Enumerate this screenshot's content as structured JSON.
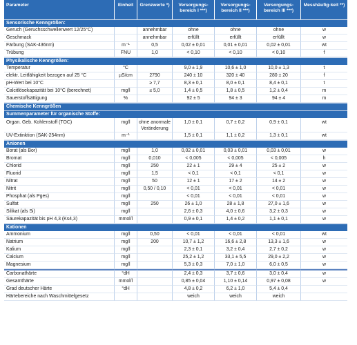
{
  "header": [
    "Parameter",
    "Einheit",
    "Grenzwerte *)",
    "Versorgungs-bereich I ***)",
    "Versorgungs-bereich II ***)",
    "Versorgungs-bereich III ***)",
    "Messhäufig-keit **)"
  ],
  "sections": [
    {
      "title": "Sensorische Kenngrößen:",
      "rows": [
        [
          "Geruch (Geruchsschwellenwert 12/25°C)",
          "",
          "annehmbar",
          "ohne",
          "ohne",
          "ohne",
          "w"
        ],
        [
          "Geschmack",
          "",
          "annehmbar",
          "erfüllt",
          "erfüllt",
          "erfüllt",
          "w"
        ],
        [
          "Färbung  (SAK-436nm)",
          "m⁻¹",
          "0,5",
          "0,02 ± 0,01",
          "0,01 ± 0,01",
          "0,02 ± 0,01",
          "wt"
        ],
        [
          "Trübung",
          "FNU",
          "1,0",
          "< 0,10",
          "< 0,10",
          "< 0,10",
          "f"
        ]
      ]
    },
    {
      "title": "Physikalische Kenngrößen:",
      "rows": [
        [
          "Temperatur",
          "°C",
          "",
          "9,0 ± 1,9",
          "10,6 ± 1,0",
          "10,0 ± 1,3",
          "t"
        ],
        [
          "elektr. Leitfähigkeit bezogen auf 25 °C",
          "µS/cm",
          "2790",
          "240 ± 10",
          "320 ± 40",
          "280 ± 20",
          "f"
        ],
        [
          "pH-Wert bei 10°C",
          "",
          "≥ 7,7",
          "8,3 ± 0,1",
          "8,0 ± 0,1",
          "8,4 ± 0,1",
          "t"
        ],
        [
          "Calcitlösekapazität bei 10°C (berechnet)",
          "mg/l",
          "≤ 5,0",
          "1,4 ± 0,5",
          "1,8 ± 0,5",
          "1,2 ± 0,4",
          "m"
        ],
        [
          "Sauerstoffsättigung",
          "%",
          "",
          "92 ± 5",
          "94 ± 3",
          "94 ± 4",
          "m"
        ]
      ]
    },
    {
      "title": "Chemische Kenngrößen",
      "rows": []
    },
    {
      "title": "Summenparameter für organische Stoffe:",
      "rows": [
        [
          "Organ. Geb. Kohlenstoff (TOC)",
          "mg/l",
          "ohne anormale Veränderung",
          "1,0 ± 0,1",
          "0,7 ± 0,2",
          "0,9 ± 0,1",
          "wt"
        ],
        [
          "UV-Extinktion (SAK-254nm)",
          "m⁻¹",
          "",
          "1,5 ± 0,1",
          "1,1 ± 0,2",
          "1,3 ± 0,1",
          "wt"
        ]
      ]
    },
    {
      "title": "Anionen",
      "rows": [
        [
          "Borat (als Bor)",
          "mg/l",
          "1,0",
          "0,02 ± 0,01",
          "0,03 ± 0,01",
          "0,03 ± 0,01",
          "w"
        ],
        [
          "Bromat",
          "mg/l",
          "0,010",
          "< 0,005",
          "< 0,005",
          "< 0,005",
          "h"
        ],
        [
          "Chlorid",
          "mg/l",
          "250",
          "22 ± 1",
          "29 ± 4",
          "25 ± 2",
          "w"
        ],
        [
          "Fluorid",
          "mg/l",
          "1,5",
          "< 0,1",
          "< 0,1",
          "< 0,1",
          "w"
        ],
        [
          "Nitrat",
          "mg/l",
          "50",
          "12 ± 1",
          "17 ± 2",
          "14 ± 2",
          "w"
        ],
        [
          "Nitrit",
          "mg/l",
          "0,50 / 0,10",
          "< 0,01",
          "< 0,01",
          "< 0,01",
          "w"
        ],
        [
          "Phosphat (als Pges)",
          "mg/l",
          "",
          "< 0,01",
          "< 0,01",
          "< 0,01",
          "w"
        ],
        [
          "Sulfat",
          "mg/l",
          "250",
          "26 ± 1,0",
          "28 ± 1,8",
          "27,0 ± 1,6",
          "w"
        ],
        [
          "Silikat (als Si)",
          "mg/l",
          "",
          "2,6 ± 0,3",
          "4,0 ± 0,6",
          "3,2 ± 0,3",
          "w"
        ],
        [
          "Säurekapazität bis pH 4,3 (Ks4,3)",
          "mmol/l",
          "",
          "0,9 ± 0,1",
          "1,4 ± 0,2",
          "1,1 ± 0,1",
          "w"
        ]
      ]
    },
    {
      "title": "Kationen",
      "rows": [
        [
          "Ammonium",
          "mg/l",
          "0,50",
          "< 0,01",
          "< 0,01",
          "< 0,01",
          "wt"
        ],
        [
          "Natrium",
          "mg/l",
          "200",
          "10,7 ± 1,2",
          "16,6 ± 2,8",
          "13,3 ± 1,6",
          "w"
        ],
        [
          "Kalium",
          "mg/l",
          "",
          "2,3 ± 0,1",
          "3,2 ± 0,4",
          "2,7 ± 0,2",
          "w"
        ],
        [
          "Calcium",
          "mg/l",
          "",
          "25,2 ± 1,2",
          "33,1 ± 5,5",
          "29,0 ± 2,2",
          "w"
        ],
        [
          "Magnesium",
          "mg/l",
          "",
          "5,3 ± 0,3",
          "7,0 ± 1,0",
          "6,0 ± 0,5",
          "w"
        ]
      ]
    }
  ],
  "hardness_rows": [
    [
      "Carbonathärte",
      "°dH",
      "",
      "2,4 ± 0,3",
      "3,7 ± 0,6",
      "3,0 ± 0,4",
      "w"
    ],
    [
      "Gesamthärte",
      "mmol/l",
      "",
      "0,85 ± 0,04",
      "1,10 ± 0,14",
      "0,97 ± 0,08",
      "w"
    ],
    [
      "Grad deutscher Härte",
      "°dH",
      "",
      "4,8 ± 0,2",
      "6,2 ± 1,0",
      "5,4 ± 0,4",
      ""
    ],
    [
      "Härtebereiche nach Waschmittelgesetz",
      "",
      "",
      "weich",
      "weich",
      "weich",
      ""
    ]
  ]
}
